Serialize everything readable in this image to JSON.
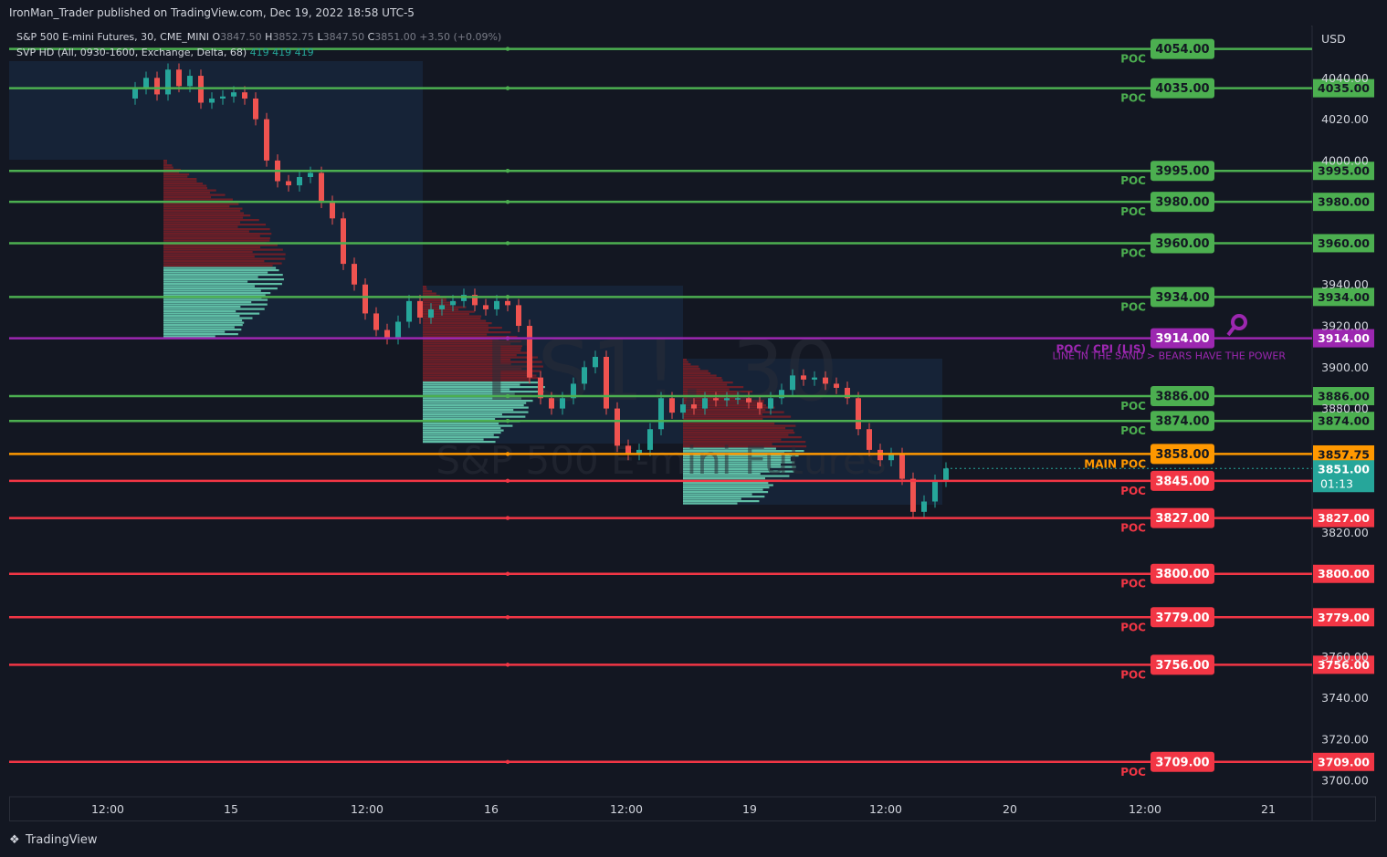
{
  "header": {
    "publisher_line": "IronMan_Trader published on TradingView.com, Dec 19, 2022 18:58 UTC-5"
  },
  "legend": {
    "symbol_line": {
      "name": "S&P 500 E-mini Futures, 30, CME_MINI",
      "o_label": "O",
      "o": "3847.50",
      "h_label": "H",
      "h": "3852.75",
      "l_label": "L",
      "l": "3847.50",
      "c_label": "C",
      "c": "3851.00",
      "change": "+3.50 (+0.09%)"
    },
    "indicator_line": {
      "name": "SVP HD (All, 0930-1600, Exchange, Delta, 68)",
      "v1": "419",
      "v2": "419",
      "v3": "419"
    }
  },
  "watermark": {
    "ticker": "ES1!, 30",
    "name": "S&P 500 E-mini Futures"
  },
  "currency": "USD",
  "colors": {
    "bg": "#131722",
    "green": "#4caf50",
    "red": "#f23645",
    "orange": "#ff9800",
    "purple": "#9c27b0",
    "teal": "#26a69a",
    "up_candle": "#26a69a",
    "down_candle": "#ef5350"
  },
  "axis": {
    "price_ticks": [
      "4040.00",
      "4020.00",
      "4000.00",
      "3940.00",
      "3920.00",
      "3900.00",
      "3880.00",
      "3820.00",
      "3760.00",
      "3740.00",
      "3720.00",
      "3700.00"
    ],
    "time_ticks": [
      "12:00",
      "15",
      "12:00",
      "16",
      "12:00",
      "19",
      "12:00",
      "20",
      "12:00",
      "21"
    ]
  },
  "levels": [
    {
      "price": "4054.00",
      "tag": "POC",
      "color": "green",
      "axis": false
    },
    {
      "price": "4035.00",
      "tag": "POC",
      "color": "green",
      "axis": true
    },
    {
      "price": "3995.00",
      "tag": "POC",
      "color": "green",
      "axis": true
    },
    {
      "price": "3980.00",
      "tag": "POC",
      "color": "green",
      "axis": true
    },
    {
      "price": "3960.00",
      "tag": "POC",
      "color": "green",
      "axis": true
    },
    {
      "price": "3934.00",
      "tag": "POC",
      "color": "green",
      "axis": true
    },
    {
      "price": "3914.00",
      "tag": "POC / CPI (LIS)",
      "subtag": "LINE IN THE SAND > BEARS HAVE THE POWER",
      "color": "purple",
      "axis": true
    },
    {
      "price": "3886.00",
      "tag": "POC",
      "color": "green",
      "axis": true
    },
    {
      "price": "3874.00",
      "tag": "POC",
      "color": "green",
      "axis": true
    },
    {
      "price": "3858.00",
      "tag": "MAIN POC",
      "color": "orange",
      "axis": false
    },
    {
      "price": "3845.00",
      "tag": "POC",
      "color": "red",
      "axis": true
    },
    {
      "price": "3827.00",
      "tag": "POC",
      "color": "red",
      "axis": true
    },
    {
      "price": "3800.00",
      "tag": "POC",
      "color": "red",
      "axis": true
    },
    {
      "price": "3779.00",
      "tag": "POC",
      "color": "red",
      "axis": true
    },
    {
      "price": "3756.00",
      "tag": "POC",
      "color": "red",
      "axis": true
    },
    {
      "price": "3709.00",
      "tag": "POC",
      "color": "red",
      "axis": true
    }
  ],
  "axis_badges": {
    "orange_price": "3857.75",
    "last_price": "3851.00",
    "countdown": "01:13"
  },
  "footer": {
    "brand": "TradingView"
  }
}
